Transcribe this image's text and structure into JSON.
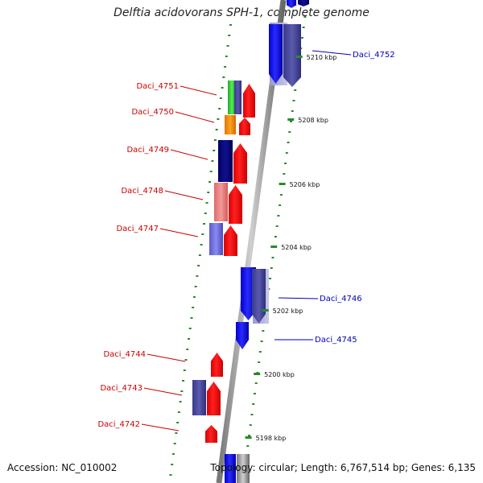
{
  "title": "Delftia acidovorans SPH-1, complete genome",
  "footer": {
    "accession": "Accession: NC_010002",
    "summary": "Topology: circular; Length: 6,767,514 bp; Genes: 6,135"
  },
  "kbp_ticks": [
    "5210 kbp",
    "5208 kbp",
    "5206 kbp",
    "5204 kbp",
    "5202 kbp",
    "5200 kbp",
    "5198 kbp"
  ],
  "genes": [
    {
      "label": "Daci_4752",
      "color": "#0000bb"
    },
    {
      "label": "Daci_4751",
      "color": "#cc0000"
    },
    {
      "label": "Daci_4750",
      "color": "#cc0000"
    },
    {
      "label": "Daci_4749",
      "color": "#cc0000"
    },
    {
      "label": "Daci_4748",
      "color": "#cc0000"
    },
    {
      "label": "Daci_4747",
      "color": "#cc0000"
    },
    {
      "label": "Daci_4746",
      "color": "#0000bb"
    },
    {
      "label": "Daci_4745",
      "color": "#0000bb"
    },
    {
      "label": "Daci_4744",
      "color": "#cc0000"
    },
    {
      "label": "Daci_4743",
      "color": "#cc0000"
    },
    {
      "label": "Daci_4742",
      "color": "#cc0000"
    }
  ],
  "colors": {
    "forward_cds": "#ff0000",
    "reverse_cds": "#0000ff",
    "tick_green": "#2a8a2a",
    "backbone": "#888888"
  }
}
